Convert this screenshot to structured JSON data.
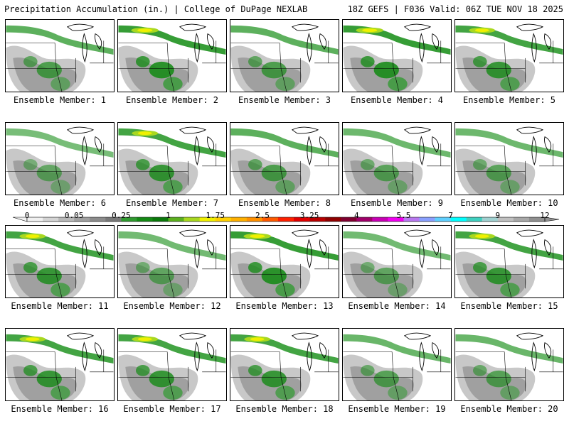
{
  "header": {
    "title": "Precipitation Accumulation (in.) | College of DuPage NEXLAB",
    "run_info": "18Z GEFS | F036 Valid: 06Z TUE NOV 18 2025"
  },
  "panels": [
    {
      "label": "Ensemble Member: 1",
      "intensity": 0.55
    },
    {
      "label": "Ensemble Member: 2",
      "intensity": 0.95
    },
    {
      "label": "Ensemble Member: 3",
      "intensity": 0.55
    },
    {
      "label": "Ensemble Member: 4",
      "intensity": 0.95
    },
    {
      "label": "Ensemble Member: 5",
      "intensity": 0.8
    },
    {
      "label": "Ensemble Member: 6",
      "intensity": 0.3
    },
    {
      "label": "Ensemble Member: 7",
      "intensity": 0.8
    },
    {
      "label": "Ensemble Member: 8",
      "intensity": 0.55
    },
    {
      "label": "Ensemble Member: 9",
      "intensity": 0.4
    },
    {
      "label": "Ensemble Member: 10",
      "intensity": 0.4
    },
    {
      "label": "Ensemble Member: 11",
      "intensity": 0.8
    },
    {
      "label": "Ensemble Member: 12",
      "intensity": 0.35
    },
    {
      "label": "Ensemble Member: 13",
      "intensity": 0.95
    },
    {
      "label": "Ensemble Member: 14",
      "intensity": 0.35
    },
    {
      "label": "Ensemble Member: 15",
      "intensity": 0.8
    },
    {
      "label": "Ensemble Member: 16",
      "intensity": 0.8
    },
    {
      "label": "Ensemble Member: 17",
      "intensity": 0.8
    },
    {
      "label": "Ensemble Member: 18",
      "intensity": 0.8
    },
    {
      "label": "Ensemble Member: 19",
      "intensity": 0.45
    },
    {
      "label": "Ensemble Member: 20",
      "intensity": 0.45
    }
  ],
  "legend": {
    "ticks": [
      {
        "value": "0",
        "pos": 0
      },
      {
        "value": "0.05",
        "pos": 3
      },
      {
        "value": "0.25",
        "pos": 6
      },
      {
        "value": "1",
        "pos": 9
      },
      {
        "value": "1.75",
        "pos": 12
      },
      {
        "value": "2.5",
        "pos": 15
      },
      {
        "value": "3.25",
        "pos": 18
      },
      {
        "value": "4",
        "pos": 21
      },
      {
        "value": "5.5",
        "pos": 24
      },
      {
        "value": "7",
        "pos": 27
      },
      {
        "value": "9",
        "pos": 30
      },
      {
        "value": "12",
        "pos": 33
      }
    ],
    "colors": [
      "#f0f0f0",
      "#d4d4d4",
      "#b8b8b8",
      "#a0a0a0",
      "#8c8c8c",
      "#787878",
      "#2f9a2f",
      "#148a14",
      "#0a780a",
      "#5cb01e",
      "#a8d820",
      "#f0f000",
      "#ffd000",
      "#ffb000",
      "#ff9000",
      "#ff5a00",
      "#ff2000",
      "#e00000",
      "#b80000",
      "#900000",
      "#800030",
      "#a0006a",
      "#c800b4",
      "#f000f0",
      "#b878f0",
      "#8aa0ff",
      "#60d0ff",
      "#00ffff",
      "#40d0c0",
      "#a0d0d0",
      "#c0c0c0",
      "#a8a8a8",
      "#909090"
    ]
  }
}
